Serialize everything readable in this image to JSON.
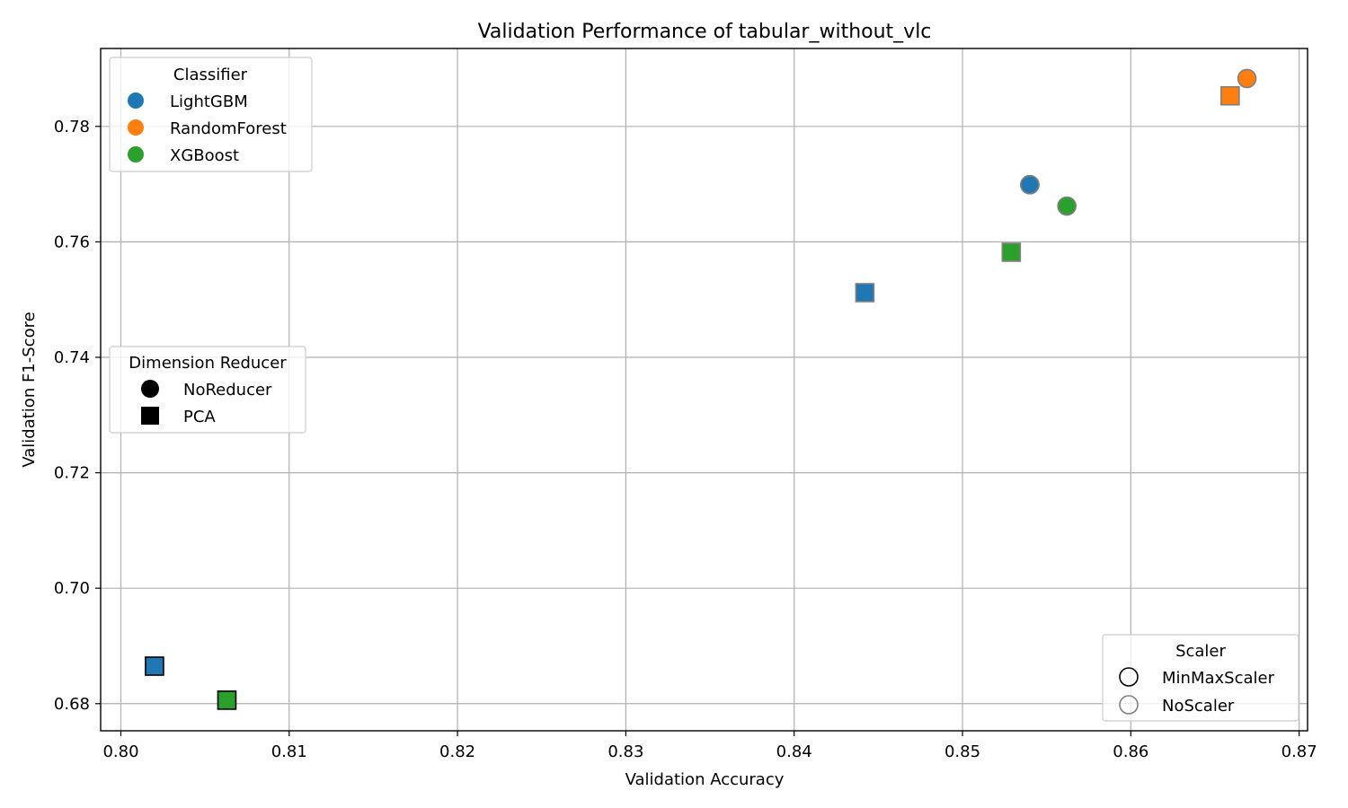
{
  "chart_data": {
    "type": "scatter",
    "title": "Validation Performance of tabular_without_vlc",
    "xlabel": "Validation Accuracy",
    "ylabel": "Validation F1-Score",
    "xlim": [
      0.7988,
      0.8705
    ],
    "ylim": [
      0.6753,
      0.7935
    ],
    "xticks": [
      "0.80",
      "0.81",
      "0.82",
      "0.83",
      "0.84",
      "0.85",
      "0.86",
      "0.87"
    ],
    "xtick_values": [
      0.8,
      0.81,
      0.82,
      0.83,
      0.84,
      0.85,
      0.86,
      0.87
    ],
    "yticks": [
      "0.68",
      "0.70",
      "0.72",
      "0.74",
      "0.76",
      "0.78"
    ],
    "ytick_values": [
      0.68,
      0.7,
      0.72,
      0.74,
      0.76,
      0.78
    ],
    "grid": true,
    "colors": {
      "LightGBM": "#1f77b4",
      "RandomForest": "#ff7f0e",
      "XGBoost": "#2ca02c",
      "MinMaxScaler": "#000000",
      "NoScaler": "#808080"
    },
    "points": [
      {
        "x": 0.854,
        "y": 0.7699,
        "classifier": "LightGBM",
        "reducer": "NoReducer",
        "scaler": "MinMaxScaler"
      },
      {
        "x": 0.854,
        "y": 0.7699,
        "classifier": "LightGBM",
        "reducer": "NoReducer",
        "scaler": "NoScaler"
      },
      {
        "x": 0.8669,
        "y": 0.7883,
        "classifier": "RandomForest",
        "reducer": "NoReducer",
        "scaler": "NoScaler"
      },
      {
        "x": 0.8659,
        "y": 0.7853,
        "classifier": "RandomForest",
        "reducer": "PCA",
        "scaler": "NoScaler"
      },
      {
        "x": 0.8562,
        "y": 0.7662,
        "classifier": "XGBoost",
        "reducer": "NoReducer",
        "scaler": "NoScaler"
      },
      {
        "x": 0.8442,
        "y": 0.7512,
        "classifier": "LightGBM",
        "reducer": "PCA",
        "scaler": "NoScaler"
      },
      {
        "x": 0.8529,
        "y": 0.7582,
        "classifier": "XGBoost",
        "reducer": "PCA",
        "scaler": "NoScaler"
      },
      {
        "x": 0.802,
        "y": 0.6865,
        "classifier": "LightGBM",
        "reducer": "PCA",
        "scaler": "MinMaxScaler"
      },
      {
        "x": 0.8063,
        "y": 0.6806,
        "classifier": "XGBoost",
        "reducer": "PCA",
        "scaler": "MinMaxScaler"
      }
    ],
    "legends": {
      "classifier": {
        "title": "Classifier",
        "placement": "upper-left",
        "entries": [
          "LightGBM",
          "RandomForest",
          "XGBoost"
        ]
      },
      "reducer": {
        "title": "Dimension Reducer",
        "placement": "center-left",
        "entries": [
          "NoReducer",
          "PCA"
        ]
      },
      "scaler": {
        "title": "Scaler",
        "placement": "lower-right",
        "entries": [
          "MinMaxScaler",
          "NoScaler"
        ]
      }
    }
  }
}
